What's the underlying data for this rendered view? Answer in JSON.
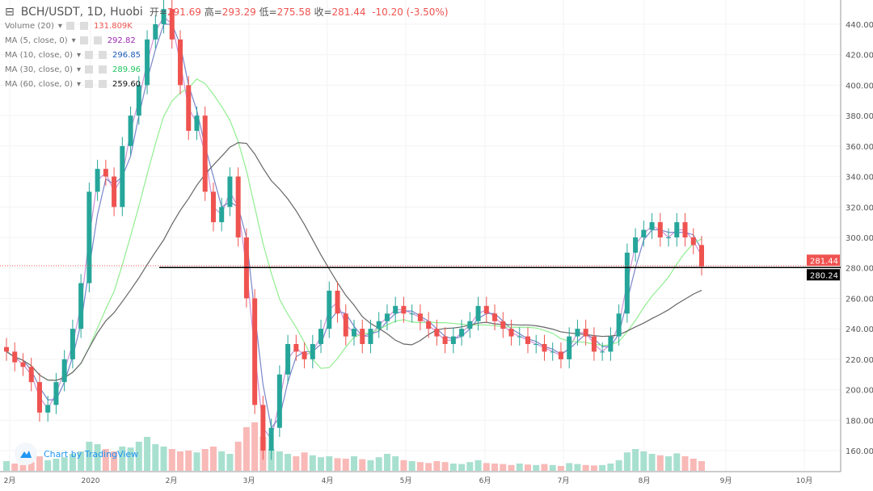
{
  "header": {
    "symbol": "BCH/USDT, 1D, Huobi",
    "open_label": "开=",
    "open": "291.69",
    "high_label": "高=",
    "high": "293.29",
    "low_label": "低=",
    "low": "275.58",
    "close_label": "收=",
    "close": "281.44",
    "change": "-10.20 (-3.50%)"
  },
  "indicators": [
    {
      "label": "Volume (20)",
      "value": "131.809K",
      "color": "#ef5350"
    },
    {
      "label": "MA (5, close, 0)",
      "value": "292.82",
      "color": "#9c27b0"
    },
    {
      "label": "MA (10, close, 0)",
      "value": "296.85",
      "color": "#1e5bb8"
    },
    {
      "label": "MA (30, close, 0)",
      "value": "289.96",
      "color": "#22c55e"
    },
    {
      "label": "MA (60, close, 0)",
      "value": "259.60",
      "color": "#111111"
    }
  ],
  "branding": "Chart by TradingView",
  "colors": {
    "up": "#26a69a",
    "down": "#ef5350",
    "ma5": "#ce93d8",
    "ma10": "#7986cb",
    "ma30": "#90ee90",
    "ma60": "#666666"
  },
  "chart_data": {
    "type": "candlestick",
    "title": "BCH/USDT, 1D, Huobi",
    "ylim": [
      145,
      455
    ],
    "y_ticks": [
      "440.00",
      "420.00",
      "400.00",
      "380.00",
      "360.00",
      "340.00",
      "320.00",
      "300.00",
      "280.00",
      "260.00",
      "240.00",
      "220.00",
      "200.00",
      "180.00",
      "160.00"
    ],
    "x_ticks": [
      "2月",
      "2020",
      "2月",
      "3月",
      "4月",
      "5月",
      "6月",
      "7月",
      "8月",
      "9月",
      "10月"
    ],
    "last_price": "281.44",
    "line_price": "280.24",
    "closes": [
      225,
      218,
      215,
      205,
      185,
      190,
      205,
      220,
      240,
      270,
      330,
      345,
      340,
      320,
      360,
      380,
      400,
      430,
      440,
      450,
      430,
      400,
      370,
      380,
      330,
      310,
      320,
      340,
      300,
      260,
      190,
      160,
      175,
      210,
      230,
      225,
      220,
      230,
      240,
      265,
      250,
      235,
      240,
      230,
      240,
      245,
      250,
      255,
      250,
      250,
      245,
      240,
      235,
      230,
      235,
      240,
      245,
      255,
      250,
      245,
      240,
      235,
      235,
      230,
      230,
      225,
      225,
      220,
      235,
      240,
      235,
      225,
      225,
      235,
      250,
      290,
      300,
      305,
      310,
      300,
      300,
      310,
      300,
      295,
      281
    ],
    "volumes": [
      20,
      15,
      12,
      18,
      30,
      22,
      25,
      28,
      35,
      40,
      60,
      55,
      45,
      40,
      50,
      48,
      60,
      70,
      55,
      50,
      45,
      40,
      42,
      38,
      45,
      50,
      40,
      35,
      60,
      90,
      100,
      70,
      45,
      40,
      35,
      30,
      38,
      32,
      28,
      30,
      26,
      25,
      30,
      24,
      22,
      28,
      35,
      30,
      22,
      20,
      18,
      16,
      20,
      18,
      15,
      14,
      18,
      22,
      16,
      15,
      14,
      12,
      15,
      13,
      12,
      14,
      12,
      10,
      16,
      14,
      12,
      11,
      12,
      15,
      22,
      38,
      45,
      40,
      35,
      32,
      30,
      36,
      30,
      25,
      20
    ]
  }
}
